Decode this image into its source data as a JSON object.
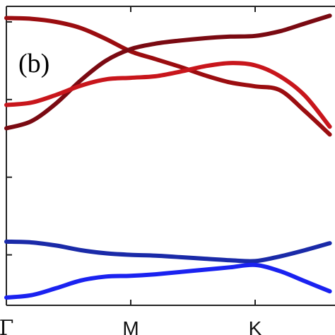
{
  "chart_data": {
    "type": "line",
    "title": "",
    "panel_label": "(b)",
    "xlabel": "",
    "ylabel": "",
    "x_ticks": [
      {
        "x": 0,
        "label": "Γ"
      },
      {
        "x": 1,
        "label": "M"
      },
      {
        "x": 2,
        "label": "K"
      }
    ],
    "xlim": [
      0,
      2.6
    ],
    "ylim": [
      0.35,
      4.2
    ],
    "y_ticks": [
      1,
      2,
      3,
      4
    ],
    "grid": false,
    "series": [
      {
        "color": "#9b0d10",
        "x": [
          0,
          0.2,
          0.4,
          0.6,
          0.8,
          1.0,
          1.2,
          1.4,
          1.6,
          1.8,
          2.0,
          2.2,
          2.4,
          2.6
        ],
        "y": [
          4.05,
          4.04,
          4.0,
          3.92,
          3.78,
          3.62,
          3.52,
          3.42,
          3.31,
          3.22,
          3.17,
          3.12,
          2.85,
          2.55
        ]
      },
      {
        "color": "#7a0a12",
        "x": [
          0,
          0.2,
          0.4,
          0.6,
          0.8,
          1.0,
          1.2,
          1.4,
          1.6,
          1.8,
          2.0,
          2.2,
          2.4,
          2.6
        ],
        "y": [
          2.63,
          2.72,
          2.95,
          3.25,
          3.5,
          3.65,
          3.72,
          3.76,
          3.79,
          3.81,
          3.82,
          3.88,
          3.98,
          4.08
        ]
      },
      {
        "color": "#c8161c",
        "x": [
          0,
          0.2,
          0.4,
          0.6,
          0.8,
          1.0,
          1.2,
          1.4,
          1.6,
          1.8,
          2.0,
          2.2,
          2.4,
          2.6
        ],
        "y": [
          2.93,
          2.96,
          3.06,
          3.18,
          3.26,
          3.28,
          3.3,
          3.36,
          3.43,
          3.47,
          3.44,
          3.3,
          3.05,
          2.65
        ]
      },
      {
        "color": "#1a2aa8",
        "x": [
          0,
          0.2,
          0.4,
          0.6,
          0.8,
          1.0,
          1.2,
          1.4,
          1.6,
          1.8,
          2.0,
          2.2,
          2.4,
          2.6
        ],
        "y": [
          1.17,
          1.16,
          1.12,
          1.06,
          1.02,
          1.0,
          0.99,
          0.97,
          0.95,
          0.93,
          0.92,
          0.98,
          1.06,
          1.15
        ]
      },
      {
        "color": "#1a22f0",
        "x": [
          0,
          0.2,
          0.4,
          0.6,
          0.8,
          1.0,
          1.2,
          1.4,
          1.6,
          1.8,
          2.0,
          2.2,
          2.4,
          2.6
        ],
        "y": [
          0.45,
          0.48,
          0.57,
          0.67,
          0.72,
          0.73,
          0.75,
          0.78,
          0.81,
          0.84,
          0.87,
          0.79,
          0.66,
          0.53
        ]
      }
    ]
  }
}
